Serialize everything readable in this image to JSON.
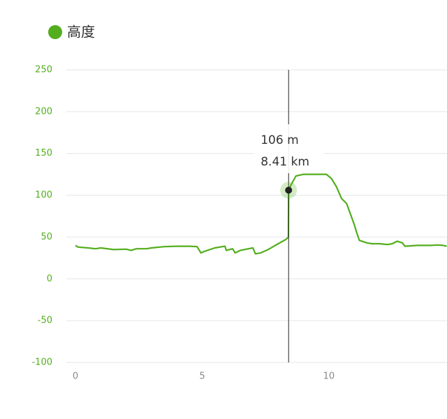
{
  "chart_data": {
    "type": "line",
    "legend": "高度",
    "color": "#52ae1d",
    "x": [
      0,
      0.1,
      0.5,
      0.8,
      1.0,
      1.5,
      2.0,
      2.2,
      2.4,
      2.8,
      3.0,
      3.5,
      4.0,
      4.5,
      4.8,
      4.95,
      5.1,
      5.5,
      5.9,
      5.95,
      6.2,
      6.3,
      6.5,
      7.0,
      7.1,
      7.3,
      7.6,
      8.0,
      8.3,
      8.4,
      8.41,
      8.5,
      8.7,
      9.0,
      9.5,
      9.9,
      10.1,
      10.3,
      10.5,
      10.7,
      11.0,
      11.1,
      11.2,
      11.5,
      11.7,
      12.0,
      12.3,
      12.5,
      12.7,
      12.9,
      13.0,
      13.5,
      14.0,
      14.3,
      14.5,
      14.65
    ],
    "values": [
      40,
      38,
      37,
      36,
      37,
      35,
      35.5,
      34,
      36,
      36,
      37,
      38.5,
      39,
      39,
      38.5,
      31,
      33,
      37,
      39,
      34,
      36,
      31,
      34,
      37,
      30,
      31,
      35,
      42,
      47,
      50,
      106,
      112,
      123,
      125,
      125,
      125,
      120,
      110,
      96,
      90,
      65,
      55,
      46,
      43,
      42,
      42,
      41,
      42,
      45,
      43,
      39,
      40,
      40,
      40.5,
      40,
      39
    ],
    "xlim": [
      -0.36,
      14.66
    ],
    "xticks": [
      0,
      5,
      10
    ],
    "ylim": [
      -100,
      250
    ],
    "yticks": [
      -100,
      -50,
      0,
      50,
      100,
      150,
      200,
      250
    ],
    "grid": true,
    "tooltip": {
      "x": 8.41,
      "y": 106,
      "labels": [
        "106 m",
        "8.41 km"
      ]
    }
  }
}
